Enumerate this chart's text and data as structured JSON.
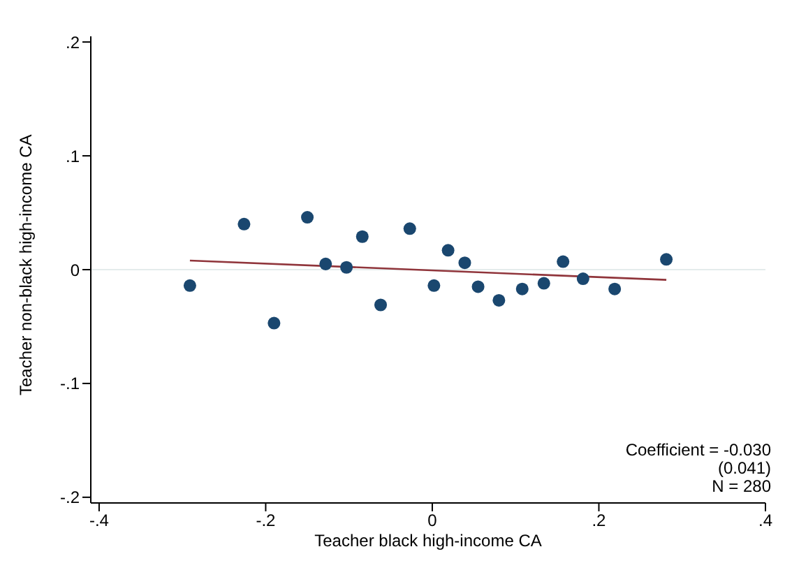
{
  "chart_data": {
    "type": "scatter",
    "xlabel": "Teacher black high-income CA",
    "ylabel": "Teacher non-black high-income CA",
    "xlim": [
      -0.41,
      0.4
    ],
    "ylim": [
      -0.205,
      0.205
    ],
    "xticks": [
      {
        "value": -0.4,
        "label": "-.4"
      },
      {
        "value": -0.2,
        "label": "-.2"
      },
      0,
      {
        "value": 0.2,
        "label": ".2"
      },
      {
        "value": 0.4,
        "label": ".4"
      }
    ],
    "yticks": [
      {
        "value": -0.2,
        "label": "-.2"
      },
      {
        "value": -0.1,
        "label": "-.1"
      },
      0,
      {
        "value": 0.1,
        "label": ".1"
      },
      {
        "value": 0.2,
        "label": ".2"
      }
    ],
    "grid": false,
    "marker": "circle",
    "ref_lines": [
      {
        "axis": "y",
        "value": 0,
        "color": "#e4ecec"
      }
    ],
    "annotations": [
      "Coefficient = -0.030",
      "(0.041)",
      "N = 280"
    ],
    "series": [
      {
        "color": "#1a476f",
        "x": [
          -0.291,
          -0.226,
          -0.19,
          -0.15,
          -0.128,
          -0.103,
          -0.084,
          -0.062,
          -0.027,
          0.002,
          0.019,
          0.039,
          0.055,
          0.08,
          0.108,
          0.134,
          0.157,
          0.181,
          0.219,
          0.281
        ],
        "values": [
          -0.014,
          0.04,
          -0.047,
          0.046,
          0.005,
          0.002,
          0.029,
          -0.031,
          0.036,
          -0.014,
          0.017,
          0.006,
          -0.015,
          -0.027,
          -0.017,
          -0.012,
          0.007,
          -0.008,
          -0.017,
          0.009
        ]
      },
      {
        "type": "line",
        "color": "#90353b",
        "marker": "none",
        "line_style": "solid",
        "x": [
          -0.291,
          0.281
        ],
        "values": [
          0.008,
          -0.009
        ]
      }
    ]
  }
}
